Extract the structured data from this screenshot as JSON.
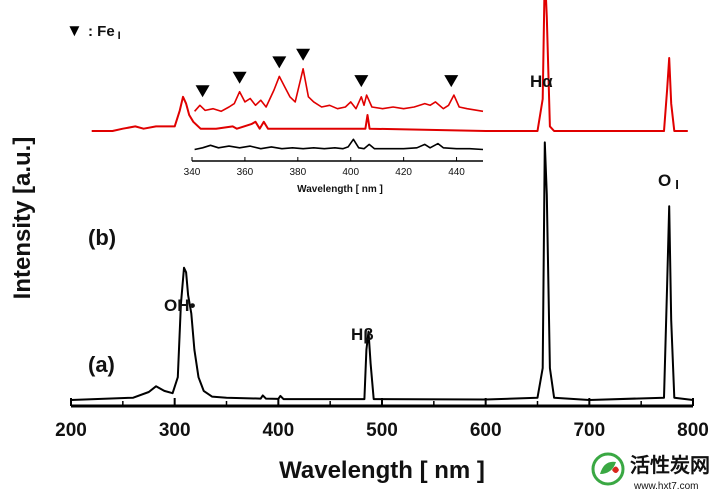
{
  "chart_data": {
    "type": "line",
    "xlabel": "Wavelength [ nm ]",
    "ylabel": "Intensity [a.u.]",
    "xlim": [
      200,
      800
    ],
    "xticks": [
      "200",
      "300",
      "400",
      "500",
      "600",
      "700",
      "800"
    ],
    "grid": false,
    "series": [
      {
        "name": "(a)",
        "color": "#000000",
        "baseline": 0,
        "points": [
          [
            200,
            0.0
          ],
          [
            260,
            0.01
          ],
          [
            275,
            0.035
          ],
          [
            282,
            0.06
          ],
          [
            290,
            0.04
          ],
          [
            298,
            0.03
          ],
          [
            303,
            0.1
          ],
          [
            306,
            0.42
          ],
          [
            309,
            0.58
          ],
          [
            311,
            0.56
          ],
          [
            313,
            0.46
          ],
          [
            316,
            0.38
          ],
          [
            319,
            0.22
          ],
          [
            323,
            0.1
          ],
          [
            328,
            0.04
          ],
          [
            336,
            0.015
          ],
          [
            350,
            0.01
          ],
          [
            383,
            0.006
          ],
          [
            385,
            0.02
          ],
          [
            388,
            0.006
          ],
          [
            400,
            0.005
          ],
          [
            402,
            0.018
          ],
          [
            405,
            0.004
          ],
          [
            420,
            0.004
          ],
          [
            483,
            0.004
          ],
          [
            485,
            0.22
          ],
          [
            487,
            0.3
          ],
          [
            489,
            0.16
          ],
          [
            492,
            0.004
          ],
          [
            600,
            0.002
          ],
          [
            650,
            0.01
          ],
          [
            655,
            0.14
          ],
          [
            657,
            1.13
          ],
          [
            659,
            0.9
          ],
          [
            662,
            0.14
          ],
          [
            666,
            0.01
          ],
          [
            700,
            0.0
          ],
          [
            772,
            0.01
          ],
          [
            775,
            0.5
          ],
          [
            777,
            0.85
          ],
          [
            779,
            0.35
          ],
          [
            782,
            0.01
          ],
          [
            800,
            0.0
          ]
        ]
      },
      {
        "name": "(b)",
        "color": "#e00000",
        "baseline": 1.18,
        "points": [
          [
            220,
            1.18
          ],
          [
            240,
            1.18
          ],
          [
            250,
            1.19
          ],
          [
            262,
            1.2
          ],
          [
            270,
            1.19
          ],
          [
            282,
            1.2
          ],
          [
            300,
            1.2
          ],
          [
            305,
            1.27
          ],
          [
            308,
            1.33
          ],
          [
            311,
            1.3
          ],
          [
            314,
            1.25
          ],
          [
            318,
            1.22
          ],
          [
            325,
            1.19
          ],
          [
            340,
            1.19
          ],
          [
            356,
            1.2
          ],
          [
            360,
            1.19
          ],
          [
            374,
            1.21
          ],
          [
            378,
            1.22
          ],
          [
            382,
            1.19
          ],
          [
            386,
            1.22
          ],
          [
            390,
            1.19
          ],
          [
            420,
            1.19
          ],
          [
            440,
            1.19
          ],
          [
            484,
            1.19
          ],
          [
            486,
            1.25
          ],
          [
            488,
            1.19
          ],
          [
            600,
            1.18
          ],
          [
            650,
            1.18
          ],
          [
            655,
            1.32
          ],
          [
            657,
            1.88
          ],
          [
            659,
            1.68
          ],
          [
            662,
            1.2
          ],
          [
            666,
            1.18
          ],
          [
            700,
            1.18
          ],
          [
            772,
            1.18
          ],
          [
            775,
            1.36
          ],
          [
            777,
            1.5
          ],
          [
            779,
            1.3
          ],
          [
            782,
            1.18
          ],
          [
            795,
            1.18
          ]
        ]
      }
    ],
    "annotations": {
      "oh": "OH•",
      "hbeta": "Hβ",
      "halpha": "Hα",
      "o_main": "O",
      "o_sub": "I"
    },
    "inset": {
      "xlabel": "Wavelength [ nm ]",
      "xlim": [
        340,
        450
      ],
      "xticks": [
        "340",
        "360",
        "380",
        "400",
        "420",
        "440"
      ],
      "legend": {
        "marker": "▼",
        "text": ": Fe",
        "sub": "I"
      },
      "fe_marker_wavelengths": [
        344,
        358,
        373,
        382,
        404,
        438
      ],
      "series": [
        {
          "name": "red",
          "color": "#e00000",
          "baseline": 0.55,
          "points": [
            [
              341,
              0.55
            ],
            [
              343,
              0.62
            ],
            [
              345,
              0.56
            ],
            [
              348,
              0.58
            ],
            [
              351,
              0.55
            ],
            [
              354,
              0.6
            ],
            [
              356,
              0.64
            ],
            [
              358,
              0.78
            ],
            [
              360,
              0.66
            ],
            [
              362,
              0.7
            ],
            [
              364,
              0.62
            ],
            [
              366,
              0.68
            ],
            [
              368,
              0.6
            ],
            [
              371,
              0.8
            ],
            [
              373,
              0.96
            ],
            [
              375,
              0.84
            ],
            [
              377,
              0.72
            ],
            [
              379,
              0.66
            ],
            [
              381,
              0.92
            ],
            [
              382,
              1.05
            ],
            [
              384,
              0.72
            ],
            [
              386,
              0.66
            ],
            [
              389,
              0.6
            ],
            [
              392,
              0.62
            ],
            [
              395,
              0.58
            ],
            [
              398,
              0.6
            ],
            [
              400,
              0.66
            ],
            [
              402,
              0.58
            ],
            [
              404,
              0.72
            ],
            [
              405,
              0.62
            ],
            [
              406,
              0.74
            ],
            [
              408,
              0.6
            ],
            [
              412,
              0.58
            ],
            [
              416,
              0.6
            ],
            [
              420,
              0.58
            ],
            [
              424,
              0.6
            ],
            [
              428,
              0.64
            ],
            [
              430,
              0.62
            ],
            [
              432,
              0.66
            ],
            [
              435,
              0.58
            ],
            [
              437,
              0.62
            ],
            [
              439,
              0.74
            ],
            [
              441,
              0.6
            ],
            [
              444,
              0.58
            ],
            [
              448,
              0.56
            ],
            [
              450,
              0.55
            ]
          ]
        },
        {
          "name": "black",
          "color": "#000000",
          "baseline": 0.1,
          "points": [
            [
              341,
              0.1
            ],
            [
              344,
              0.12
            ],
            [
              347,
              0.15
            ],
            [
              350,
              0.12
            ],
            [
              354,
              0.14
            ],
            [
              358,
              0.12
            ],
            [
              362,
              0.14
            ],
            [
              366,
              0.11
            ],
            [
              370,
              0.13
            ],
            [
              374,
              0.11
            ],
            [
              378,
              0.12
            ],
            [
              382,
              0.11
            ],
            [
              386,
              0.12
            ],
            [
              390,
              0.11
            ],
            [
              394,
              0.12
            ],
            [
              397,
              0.11
            ],
            [
              399,
              0.13
            ],
            [
              401,
              0.22
            ],
            [
              403,
              0.12
            ],
            [
              405,
              0.11
            ],
            [
              407,
              0.16
            ],
            [
              409,
              0.11
            ],
            [
              414,
              0.11
            ],
            [
              420,
              0.11
            ],
            [
              425,
              0.12
            ],
            [
              428,
              0.16
            ],
            [
              430,
              0.12
            ],
            [
              433,
              0.17
            ],
            [
              435,
              0.12
            ],
            [
              440,
              0.11
            ],
            [
              445,
              0.11
            ],
            [
              450,
              0.1
            ]
          ]
        }
      ]
    }
  },
  "watermark": {
    "title": "活性炭网",
    "url": "www.hxt7.com",
    "green": "#3aa843",
    "red": "#d9261c"
  }
}
